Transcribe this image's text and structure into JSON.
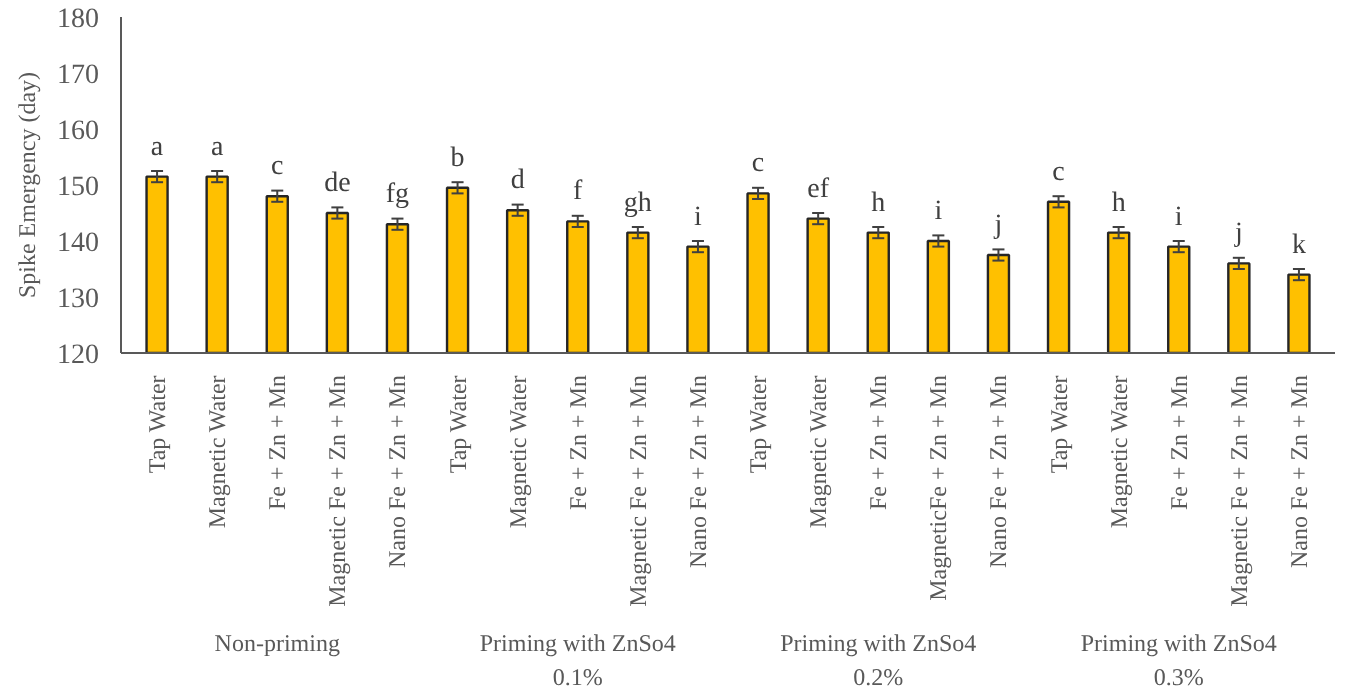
{
  "chart_data": {
    "type": "bar",
    "ylabel": "Spike Emergency (day)",
    "categories": [
      "Tap Water",
      "Magnetic Water",
      "Fe + Zn + Mn",
      "Magnetic Fe + Zn + Mn",
      "Nano Fe + Zn + Mn",
      "Tap Water",
      "Magnetic Water",
      "Fe + Zn + Mn",
      "Magnetic Fe + Zn + Mn",
      "Nano Fe + Zn + Mn",
      "Tap Water",
      "Magnetic Water",
      "Fe + Zn + Mn",
      "MagneticFe + Zn + Mn",
      "Nano Fe + Zn + Mn",
      "Tap Water",
      "Magnetic Water",
      "Fe + Zn + Mn",
      "Magnetic Fe + Zn + Mn",
      "Nano Fe + Zn + Mn"
    ],
    "values": [
      151.5,
      151.5,
      148,
      145,
      143,
      149.5,
      145.5,
      143.5,
      141.5,
      139,
      148.5,
      144,
      141.5,
      140,
      137.5,
      147,
      141.5,
      139,
      136,
      134
    ],
    "errors": [
      1,
      1,
      1,
      1,
      1,
      1,
      1,
      1,
      1,
      1,
      1,
      1,
      1,
      1,
      1,
      1,
      1,
      1,
      1,
      1
    ],
    "value_labels": [
      "a",
      "a",
      "c",
      "de",
      "fg",
      "b",
      "d",
      "f",
      "gh",
      "i",
      "c",
      "ef",
      "h",
      "i",
      "j",
      "c",
      "h",
      "i",
      "j",
      "k"
    ],
    "color": "#ffc000",
    "annotations": [
      "Non-priming",
      "Priming with ZnSo4\n0.1%",
      "Priming with ZnSo4\n0.2%",
      "Priming with ZnSo4\n0.3%"
    ],
    "ylim": [
      120,
      180
    ],
    "yticks": [
      120,
      130,
      140,
      150,
      160,
      170,
      180
    ],
    "grid": false
  }
}
